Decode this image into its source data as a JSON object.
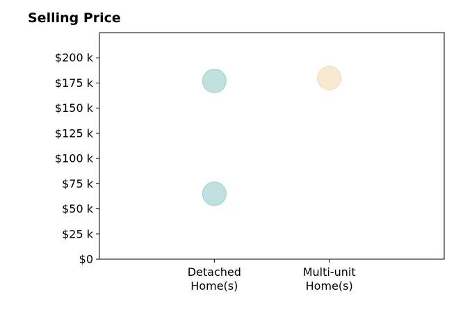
{
  "chart_data": {
    "type": "scatter",
    "title": "Selling Price",
    "xlabel": "",
    "ylabel": "",
    "categories": [
      "Detached\nHome(s)",
      "Multi-unit\nHome(s)"
    ],
    "xlim": [
      -1,
      2
    ],
    "ylim": [
      0,
      225000
    ],
    "y_ticks": [
      {
        "value": 0,
        "label": "$0"
      },
      {
        "value": 25000,
        "label": "$25 k"
      },
      {
        "value": 50000,
        "label": "$50 k"
      },
      {
        "value": 75000,
        "label": "$75 k"
      },
      {
        "value": 100000,
        "label": "$100 k"
      },
      {
        "value": 125000,
        "label": "$125 k"
      },
      {
        "value": 150000,
        "label": "$150 k"
      },
      {
        "value": 175000,
        "label": "$175 k"
      },
      {
        "value": 200000,
        "label": "$200 k"
      }
    ],
    "points": [
      {
        "category": "Detached\nHome(s)",
        "x": 0,
        "y": 177000,
        "color": "#bfe1df",
        "edge": "#9fd0cd"
      },
      {
        "category": "Detached\nHome(s)",
        "x": 0,
        "y": 65000,
        "color": "#bfe1df",
        "edge": "#9fd0cd"
      },
      {
        "category": "Multi-unit\nHome(s)",
        "x": 1,
        "y": 180000,
        "color": "#f8ead0",
        "edge": "#f0dcb5"
      }
    ],
    "grid": false,
    "legend": "none"
  }
}
